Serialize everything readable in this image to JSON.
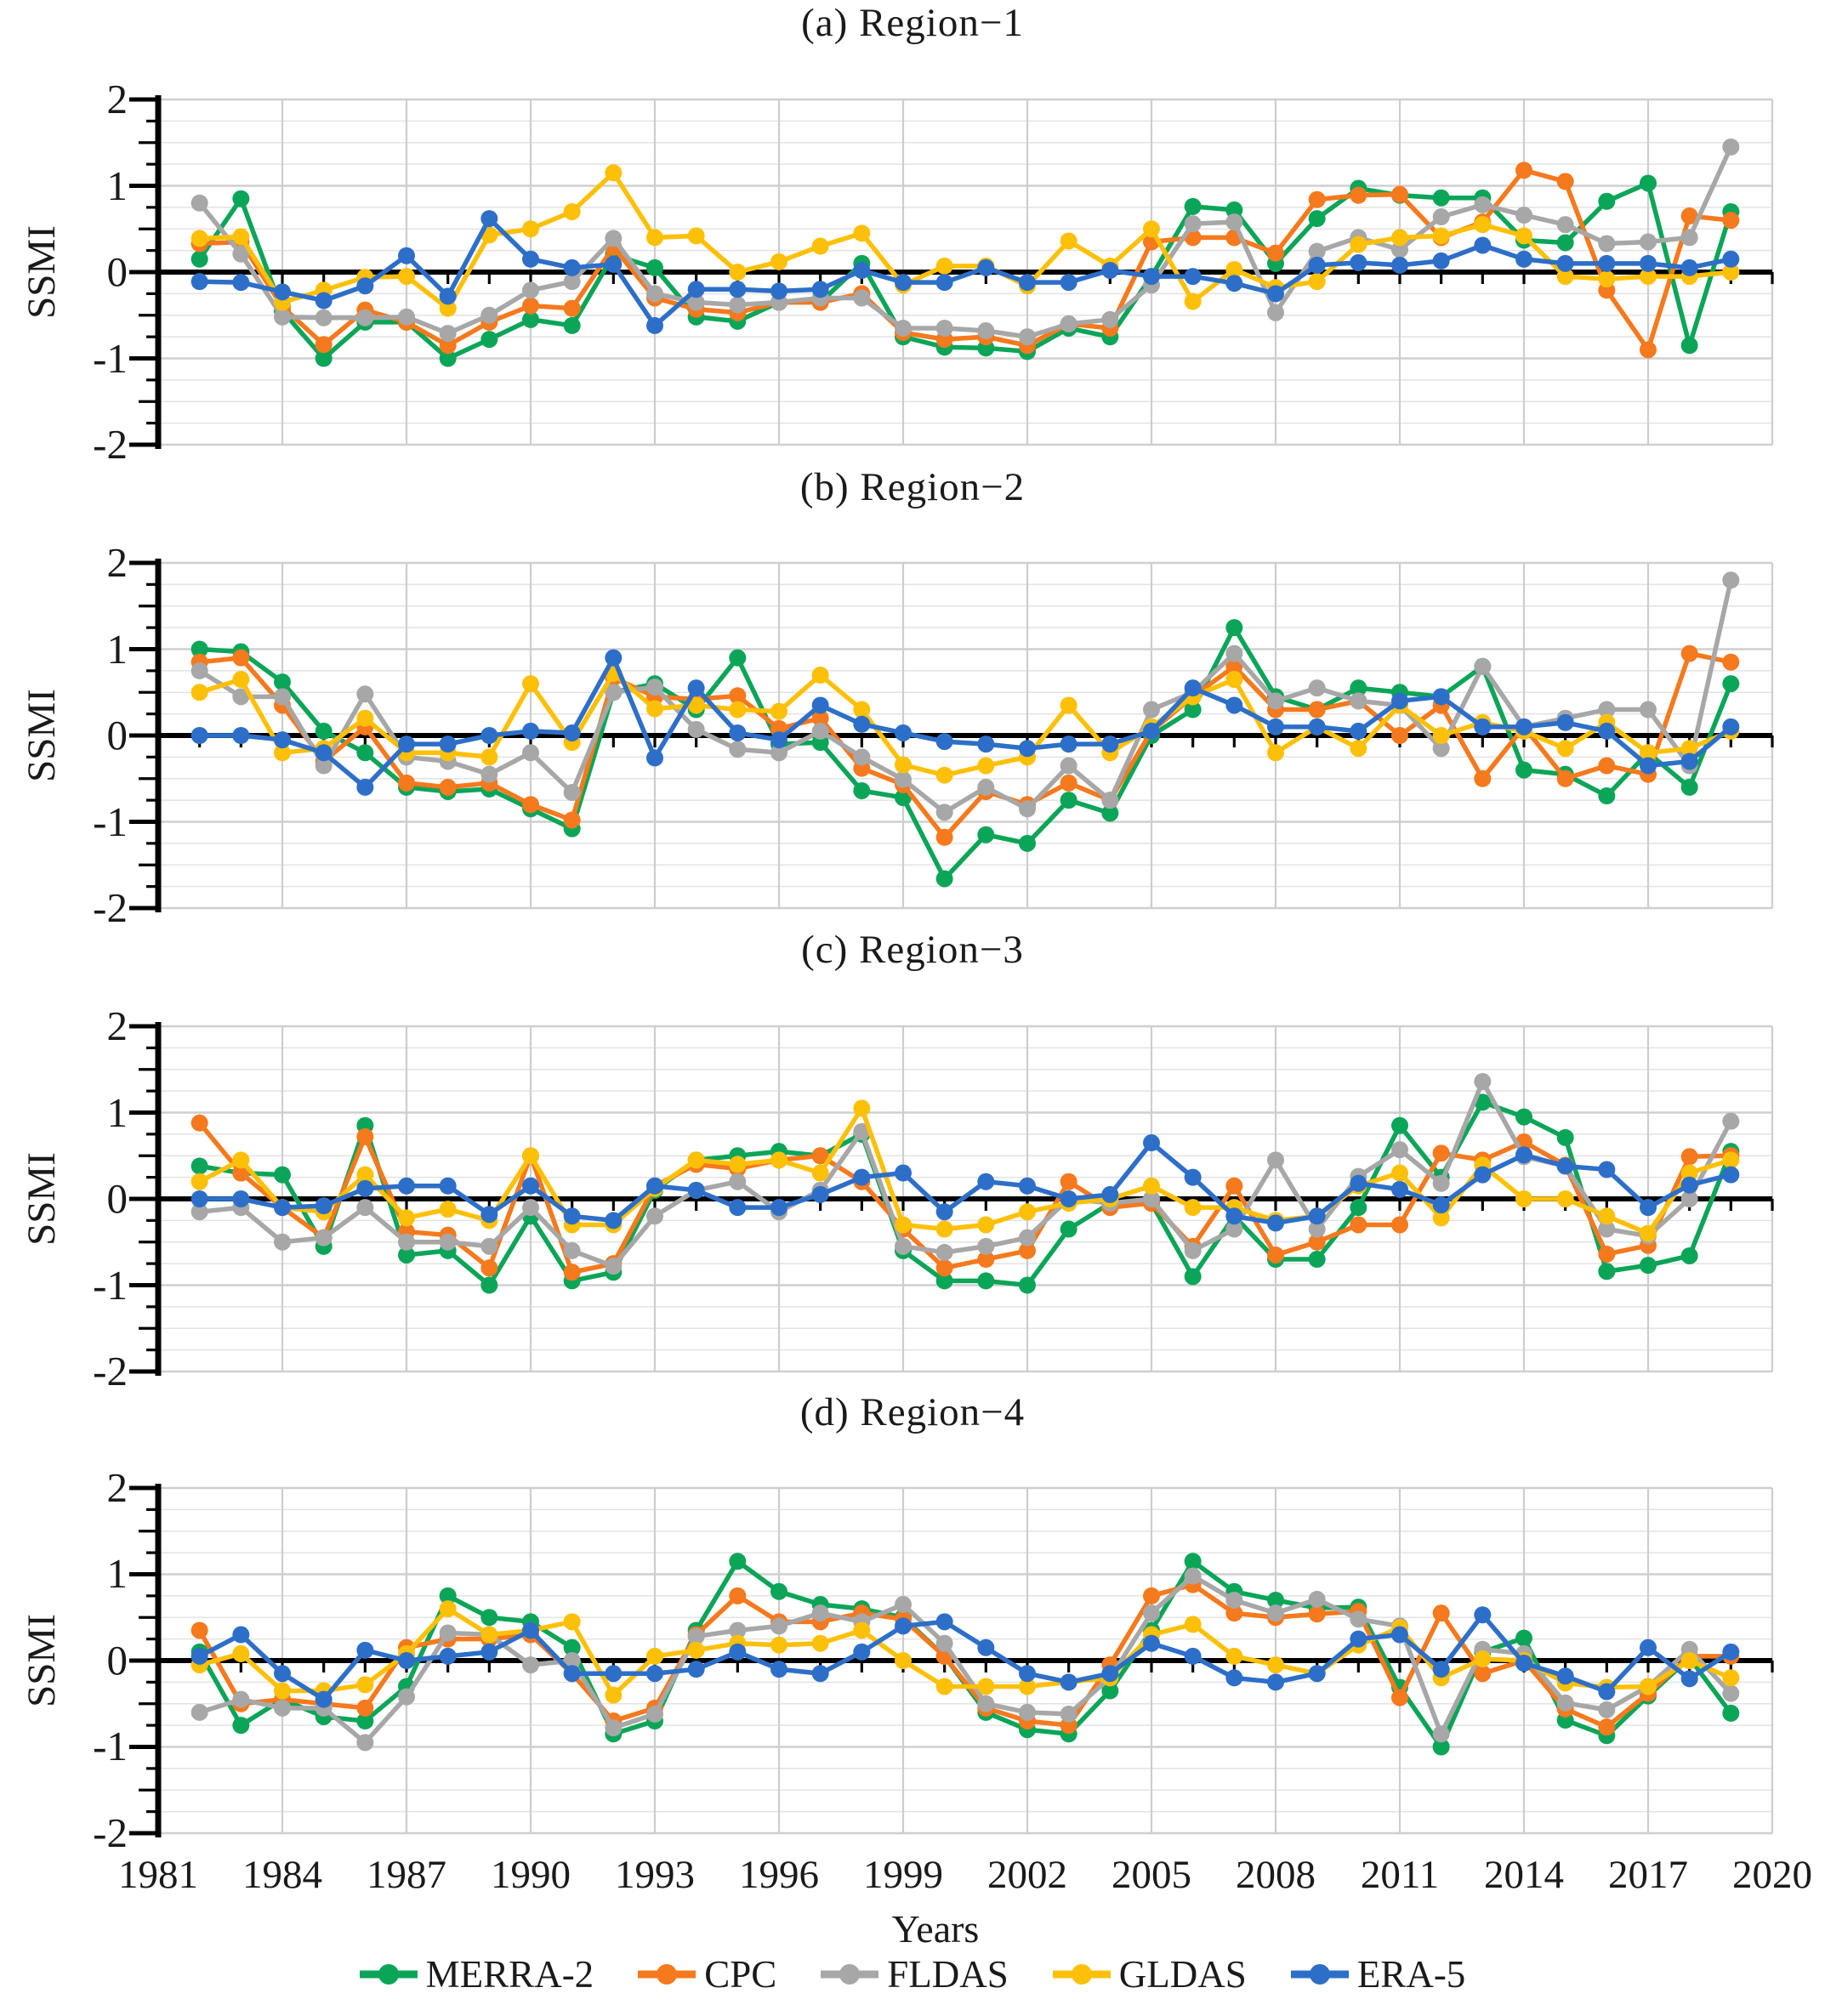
{
  "figure": {
    "xlabel": "Years",
    "ylabel": "SSMI",
    "x_tick_labels": [
      "1981",
      "1984",
      "1987",
      "1990",
      "1993",
      "1996",
      "1999",
      "2002",
      "2005",
      "2008",
      "2011",
      "2014",
      "2017",
      "2020"
    ],
    "y_tick_labels": [
      "2",
      "1",
      "0",
      "-1",
      "-2"
    ],
    "legend": [
      {
        "label": "MERRA-2",
        "color": "#0ba558"
      },
      {
        "label": "CPC",
        "color": "#f5791d"
      },
      {
        "label": "FLDAS",
        "color": "#a7a7a7"
      },
      {
        "label": "GLDAS",
        "color": "#fdc008"
      },
      {
        "label": "ERA-5",
        "color": "#2d6fc8"
      }
    ]
  },
  "chart_data": [
    {
      "type": "line",
      "title": "(a) Region−1",
      "ylabel": "SSMI",
      "ylim": [
        -2,
        2
      ],
      "grid": true,
      "years": [
        1982,
        1983,
        1984,
        1985,
        1986,
        1987,
        1988,
        1989,
        1990,
        1991,
        1992,
        1993,
        1994,
        1995,
        1996,
        1997,
        1998,
        1999,
        2000,
        2001,
        2002,
        2003,
        2004,
        2005,
        2006,
        2007,
        2008,
        2009,
        2010,
        2011,
        2012,
        2013,
        2014,
        2015,
        2016,
        2017,
        2018,
        2019
      ],
      "series": [
        {
          "name": "MERRA-2",
          "color": "#0ba558",
          "values": [
            0.15,
            0.85,
            -0.45,
            -1.0,
            -0.58,
            -0.58,
            -1.0,
            -0.78,
            -0.55,
            -0.62,
            0.2,
            0.05,
            -0.52,
            -0.57,
            -0.35,
            -0.35,
            0.1,
            -0.75,
            -0.87,
            -0.88,
            -0.92,
            -0.65,
            -0.75,
            -0.05,
            0.76,
            0.72,
            0.1,
            0.62,
            0.97,
            0.89,
            0.86,
            0.86,
            0.37,
            0.34,
            0.82,
            1.03,
            -0.85,
            0.7
          ]
        },
        {
          "name": "CPC",
          "color": "#f5791d",
          "values": [
            0.33,
            0.35,
            -0.4,
            -0.84,
            -0.44,
            -0.58,
            -0.85,
            -0.58,
            -0.39,
            -0.42,
            0.29,
            -0.3,
            -0.43,
            -0.47,
            -0.35,
            -0.35,
            -0.25,
            -0.7,
            -0.78,
            -0.75,
            -0.85,
            -0.6,
            -0.65,
            0.35,
            0.4,
            0.4,
            0.22,
            0.84,
            0.89,
            0.9,
            0.4,
            0.58,
            1.18,
            1.05,
            -0.21,
            -0.9,
            0.65,
            0.6
          ]
        },
        {
          "name": "FLDAS",
          "color": "#a7a7a7",
          "values": [
            0.8,
            0.21,
            -0.52,
            -0.53,
            -0.53,
            -0.52,
            -0.71,
            -0.5,
            -0.21,
            -0.11,
            0.39,
            -0.25,
            -0.35,
            -0.38,
            -0.35,
            -0.3,
            -0.3,
            -0.65,
            -0.65,
            -0.68,
            -0.75,
            -0.6,
            -0.55,
            -0.15,
            0.56,
            0.58,
            -0.47,
            0.24,
            0.4,
            0.26,
            0.64,
            0.78,
            0.66,
            0.55,
            0.33,
            0.35,
            0.4,
            1.45
          ]
        },
        {
          "name": "GLDAS",
          "color": "#fdc008",
          "values": [
            0.39,
            0.41,
            -0.35,
            -0.21,
            -0.06,
            -0.05,
            -0.42,
            0.43,
            0.5,
            0.7,
            1.15,
            0.4,
            0.42,
            0.0,
            0.12,
            0.3,
            0.45,
            -0.15,
            0.07,
            0.07,
            -0.16,
            0.36,
            0.07,
            0.5,
            -0.34,
            0.03,
            -0.18,
            -0.11,
            0.32,
            0.4,
            0.42,
            0.55,
            0.42,
            -0.05,
            -0.08,
            -0.05,
            -0.05,
            0.0
          ]
        },
        {
          "name": "ERA-5",
          "color": "#2d6fc8",
          "values": [
            -0.11,
            -0.12,
            -0.23,
            -0.33,
            -0.16,
            0.19,
            -0.28,
            0.62,
            0.15,
            0.05,
            0.09,
            -0.62,
            -0.2,
            -0.2,
            -0.22,
            -0.2,
            0.02,
            -0.12,
            -0.12,
            0.05,
            -0.12,
            -0.12,
            0.02,
            -0.05,
            -0.05,
            -0.13,
            -0.25,
            0.08,
            0.11,
            0.08,
            0.13,
            0.31,
            0.15,
            0.1,
            0.1,
            0.1,
            0.05,
            0.15
          ]
        }
      ]
    },
    {
      "type": "line",
      "title": "(b) Region−2",
      "ylabel": "SSMI",
      "ylim": [
        -2,
        2
      ],
      "grid": true,
      "years": [
        1982,
        1983,
        1984,
        1985,
        1986,
        1987,
        1988,
        1989,
        1990,
        1991,
        1992,
        1993,
        1994,
        1995,
        1996,
        1997,
        1998,
        1999,
        2000,
        2001,
        2002,
        2003,
        2004,
        2005,
        2006,
        2007,
        2008,
        2009,
        2010,
        2011,
        2012,
        2013,
        2014,
        2015,
        2016,
        2017,
        2018,
        2019
      ],
      "series": [
        {
          "name": "MERRA-2",
          "color": "#0ba558",
          "values": [
            1.0,
            0.97,
            0.62,
            0.05,
            -0.2,
            -0.6,
            -0.65,
            -0.62,
            -0.85,
            -1.08,
            0.5,
            0.6,
            0.3,
            0.9,
            -0.1,
            -0.08,
            -0.64,
            -0.72,
            -1.66,
            -1.15,
            -1.25,
            -0.75,
            -0.9,
            0.0,
            0.3,
            1.25,
            0.45,
            0.3,
            0.55,
            0.5,
            0.45,
            0.8,
            -0.4,
            -0.45,
            -0.7,
            -0.2,
            -0.6,
            0.6
          ]
        },
        {
          "name": "CPC",
          "color": "#f5791d",
          "values": [
            0.85,
            0.9,
            0.35,
            -0.3,
            0.1,
            -0.55,
            -0.6,
            -0.55,
            -0.8,
            -0.98,
            0.67,
            0.45,
            0.42,
            0.46,
            0.08,
            0.2,
            -0.38,
            -0.57,
            -1.18,
            -0.65,
            -0.8,
            -0.55,
            -0.75,
            0.05,
            0.45,
            0.8,
            0.3,
            0.3,
            0.4,
            0.0,
            0.35,
            -0.5,
            0.1,
            -0.5,
            -0.35,
            -0.45,
            0.95,
            0.85
          ]
        },
        {
          "name": "FLDAS",
          "color": "#a7a7a7",
          "values": [
            0.75,
            0.45,
            0.45,
            -0.35,
            0.48,
            -0.25,
            -0.3,
            -0.45,
            -0.2,
            -0.66,
            0.5,
            0.56,
            0.07,
            -0.16,
            -0.2,
            0.05,
            -0.25,
            -0.51,
            -0.89,
            -0.6,
            -0.85,
            -0.35,
            -0.75,
            0.3,
            0.5,
            0.95,
            0.4,
            0.55,
            0.4,
            0.35,
            -0.15,
            0.8,
            0.1,
            0.2,
            0.3,
            0.3,
            -0.35,
            1.8
          ]
        },
        {
          "name": "GLDAS",
          "color": "#fdc008",
          "values": [
            0.5,
            0.65,
            -0.2,
            -0.15,
            0.2,
            -0.2,
            -0.2,
            -0.25,
            0.6,
            -0.08,
            0.72,
            0.31,
            0.35,
            0.3,
            0.28,
            0.7,
            0.3,
            -0.34,
            -0.46,
            -0.35,
            -0.25,
            0.35,
            -0.2,
            0.1,
            0.45,
            0.65,
            -0.2,
            0.1,
            -0.15,
            0.35,
            0.0,
            0.15,
            0.05,
            -0.15,
            0.15,
            -0.2,
            -0.15,
            0.05
          ]
        },
        {
          "name": "ERA-5",
          "color": "#2d6fc8",
          "values": [
            0.0,
            0.0,
            -0.05,
            -0.2,
            -0.6,
            -0.1,
            -0.1,
            0.0,
            0.05,
            0.03,
            0.9,
            -0.26,
            0.55,
            0.03,
            -0.05,
            0.35,
            0.13,
            0.03,
            -0.07,
            -0.1,
            -0.15,
            -0.1,
            -0.1,
            0.05,
            0.55,
            0.35,
            0.1,
            0.1,
            0.05,
            0.4,
            0.45,
            0.1,
            0.1,
            0.15,
            0.05,
            -0.35,
            -0.3,
            0.1
          ]
        }
      ]
    },
    {
      "type": "line",
      "title": "(c) Region−3",
      "ylabel": "SSMI",
      "ylim": [
        -2,
        2
      ],
      "grid": true,
      "years": [
        1982,
        1983,
        1984,
        1985,
        1986,
        1987,
        1988,
        1989,
        1990,
        1991,
        1992,
        1993,
        1994,
        1995,
        1996,
        1997,
        1998,
        1999,
        2000,
        2001,
        2002,
        2003,
        2004,
        2005,
        2006,
        2007,
        2008,
        2009,
        2010,
        2011,
        2012,
        2013,
        2014,
        2015,
        2016,
        2017,
        2018,
        2019
      ],
      "series": [
        {
          "name": "MERRA-2",
          "color": "#0ba558",
          "values": [
            0.38,
            0.3,
            0.28,
            -0.55,
            0.85,
            -0.65,
            -0.6,
            -1.0,
            -0.2,
            -0.95,
            -0.85,
            0.1,
            0.45,
            0.5,
            0.55,
            0.5,
            0.75,
            -0.6,
            -0.95,
            -0.95,
            -1.0,
            -0.35,
            -0.05,
            -0.05,
            -0.9,
            -0.2,
            -0.7,
            -0.7,
            -0.1,
            0.85,
            0.25,
            1.12,
            0.95,
            0.71,
            -0.84,
            -0.77,
            -0.66,
            0.55
          ]
        },
        {
          "name": "CPC",
          "color": "#f5791d",
          "values": [
            0.88,
            0.3,
            -0.1,
            -0.45,
            0.72,
            -0.38,
            -0.42,
            -0.8,
            0.5,
            -0.85,
            -0.75,
            0.15,
            0.4,
            0.35,
            0.45,
            0.5,
            0.2,
            -0.35,
            -0.8,
            -0.7,
            -0.6,
            0.2,
            -0.1,
            -0.05,
            -0.55,
            0.15,
            -0.65,
            -0.5,
            -0.3,
            -0.3,
            0.53,
            0.45,
            0.66,
            0.39,
            -0.64,
            -0.54,
            0.49,
            0.5
          ]
        },
        {
          "name": "FLDAS",
          "color": "#a7a7a7",
          "values": [
            -0.15,
            -0.1,
            -0.5,
            -0.45,
            -0.1,
            -0.5,
            -0.5,
            -0.55,
            -0.1,
            -0.6,
            -0.78,
            -0.2,
            0.1,
            0.2,
            -0.15,
            0.1,
            0.78,
            -0.55,
            -0.62,
            -0.55,
            -0.45,
            0.0,
            -0.05,
            0.0,
            -0.6,
            -0.35,
            0.45,
            -0.35,
            0.26,
            0.57,
            0.18,
            1.36,
            0.49,
            0.38,
            -0.35,
            -0.43,
            0.0,
            0.9
          ]
        },
        {
          "name": "GLDAS",
          "color": "#fdc008",
          "values": [
            0.2,
            0.45,
            -0.1,
            -0.15,
            0.28,
            -0.22,
            -0.12,
            -0.25,
            0.5,
            -0.3,
            -0.3,
            0.12,
            0.45,
            0.4,
            0.45,
            0.3,
            1.05,
            -0.3,
            -0.35,
            -0.3,
            -0.15,
            -0.05,
            0.0,
            0.15,
            -0.1,
            -0.1,
            -0.25,
            -0.2,
            0.15,
            0.3,
            -0.22,
            0.39,
            0.0,
            0.0,
            -0.2,
            -0.4,
            0.3,
            0.45
          ]
        },
        {
          "name": "ERA-5",
          "color": "#2d6fc8",
          "values": [
            0.0,
            0.0,
            -0.1,
            -0.08,
            0.12,
            0.15,
            0.15,
            -0.18,
            0.15,
            -0.2,
            -0.25,
            0.15,
            0.1,
            -0.1,
            -0.1,
            0.05,
            0.25,
            0.3,
            -0.15,
            0.2,
            0.15,
            0.0,
            0.05,
            0.65,
            0.25,
            -0.2,
            -0.28,
            -0.2,
            0.18,
            0.11,
            -0.07,
            0.28,
            0.51,
            0.38,
            0.34,
            -0.1,
            0.16,
            0.28
          ]
        }
      ]
    },
    {
      "type": "line",
      "title": "(d) Region−4",
      "ylabel": "SSMI",
      "ylim": [
        -2,
        2
      ],
      "grid": true,
      "years": [
        1982,
        1983,
        1984,
        1985,
        1986,
        1987,
        1988,
        1989,
        1990,
        1991,
        1992,
        1993,
        1994,
        1995,
        1996,
        1997,
        1998,
        1999,
        2000,
        2001,
        2002,
        2003,
        2004,
        2005,
        2006,
        2007,
        2008,
        2009,
        2010,
        2011,
        2012,
        2013,
        2014,
        2015,
        2016,
        2017,
        2018,
        2019
      ],
      "series": [
        {
          "name": "MERRA-2",
          "color": "#0ba558",
          "values": [
            0.1,
            -0.75,
            -0.45,
            -0.65,
            -0.7,
            -0.3,
            0.75,
            0.5,
            0.45,
            0.15,
            -0.85,
            -0.7,
            0.35,
            1.15,
            0.8,
            0.65,
            0.6,
            0.5,
            0.05,
            -0.6,
            -0.8,
            -0.85,
            -0.35,
            0.35,
            1.15,
            0.8,
            0.7,
            0.61,
            0.62,
            -0.31,
            -1.0,
            0.1,
            0.26,
            -0.69,
            -0.87,
            -0.41,
            0.03,
            -0.61
          ]
        },
        {
          "name": "CPC",
          "color": "#f5791d",
          "values": [
            0.35,
            -0.5,
            -0.45,
            -0.5,
            -0.55,
            0.15,
            0.25,
            0.25,
            0.3,
            -0.15,
            -0.7,
            -0.55,
            0.3,
            0.75,
            0.45,
            0.45,
            0.55,
            0.48,
            0.05,
            -0.55,
            -0.7,
            -0.75,
            -0.05,
            0.75,
            0.88,
            0.55,
            0.5,
            0.54,
            0.57,
            -0.43,
            0.55,
            -0.15,
            0.0,
            -0.56,
            -0.77,
            -0.38,
            0.05,
            0.05
          ]
        },
        {
          "name": "FLDAS",
          "color": "#a7a7a7",
          "values": [
            -0.6,
            -0.45,
            -0.55,
            -0.55,
            -0.95,
            -0.42,
            0.32,
            0.3,
            -0.05,
            0.0,
            -0.78,
            -0.62,
            0.28,
            0.35,
            0.4,
            0.55,
            0.45,
            0.65,
            0.2,
            -0.5,
            -0.6,
            -0.62,
            -0.2,
            0.55,
            0.98,
            0.7,
            0.55,
            0.71,
            0.48,
            0.4,
            -0.85,
            0.13,
            0.08,
            -0.49,
            -0.57,
            -0.3,
            0.13,
            -0.38
          ]
        },
        {
          "name": "GLDAS",
          "color": "#fdc008",
          "values": [
            -0.05,
            0.08,
            -0.35,
            -0.35,
            -0.28,
            0.08,
            0.6,
            0.3,
            0.35,
            0.45,
            -0.4,
            0.05,
            0.12,
            0.2,
            0.18,
            0.2,
            0.35,
            0.0,
            -0.3,
            -0.3,
            -0.3,
            -0.25,
            -0.2,
            0.3,
            0.42,
            0.05,
            -0.05,
            -0.15,
            0.18,
            0.38,
            -0.2,
            0.02,
            0.0,
            -0.26,
            -0.31,
            -0.3,
            0.0,
            -0.2
          ]
        },
        {
          "name": "ERA-5",
          "color": "#2d6fc8",
          "values": [
            0.05,
            0.3,
            -0.15,
            -0.45,
            0.12,
            0.0,
            0.05,
            0.1,
            0.35,
            -0.15,
            -0.15,
            -0.15,
            -0.1,
            0.1,
            -0.1,
            -0.15,
            0.1,
            0.4,
            0.45,
            0.15,
            -0.15,
            -0.25,
            -0.15,
            0.2,
            0.05,
            -0.2,
            -0.25,
            -0.15,
            0.25,
            0.3,
            -0.1,
            0.53,
            -0.03,
            -0.18,
            -0.36,
            0.15,
            -0.21,
            0.1
          ]
        }
      ]
    }
  ]
}
